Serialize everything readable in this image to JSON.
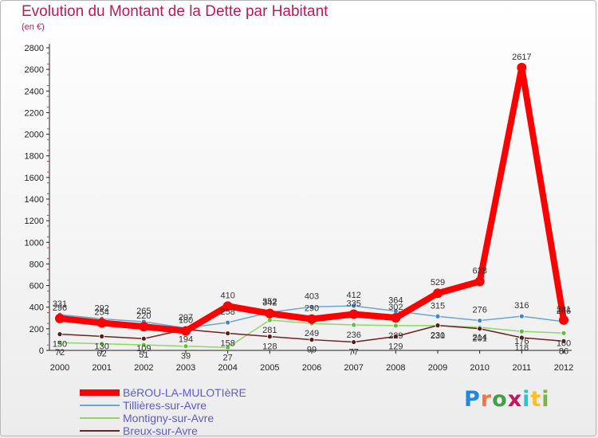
{
  "header": {
    "title": "Evolution du Montant de la Dette par Habitant",
    "subtitle": "(en €)"
  },
  "logo": {
    "letters": [
      "P",
      "r",
      "o",
      "x",
      "i",
      "t",
      "i"
    ],
    "colors": [
      "#1e88e5",
      "#ff7043",
      "#43a047",
      "#c2185b",
      "#26c6da",
      "#fbc02d",
      "#7cb342"
    ]
  },
  "chart_data": {
    "type": "line",
    "title": "Evolution du Montant de la Dette par Habitant",
    "ylabel": "(en €)",
    "ylim": [
      0,
      2800
    ],
    "yticks": [
      0,
      200,
      400,
      600,
      800,
      1000,
      1200,
      1400,
      1600,
      1800,
      2000,
      2200,
      2400,
      2600,
      2800
    ],
    "x": [
      "2000",
      "2001",
      "2002",
      "2003",
      "2004",
      "2005",
      "2006",
      "2007",
      "2008",
      "2009",
      "2010",
      "2011",
      "2012"
    ],
    "grid": false,
    "legend": "bottom-left",
    "series": [
      {
        "name": "Tillières-sur-Avre",
        "color": "#6aa6d6",
        "marker": "#3a86d0",
        "values": [
          331,
          292,
          265,
          207,
          258,
          352,
          403,
          412,
          364,
          315,
          276,
          316,
          266
        ]
      },
      {
        "name": "Montigny-sur-Avre",
        "color": "#8fd66a",
        "marker": "#5fc23a",
        "values": [
          72,
          62,
          51,
          39,
          27,
          281,
          249,
          236,
          229,
          230,
          214,
          176,
          160
        ]
      },
      {
        "name": "Breux-sur-Avre",
        "color": "#6e2323",
        "marker": "#5a1a1a",
        "values": [
          150,
          130,
          109,
          194,
          158,
          128,
          99,
          77,
          129,
          231,
          201,
          118,
          86
        ]
      },
      {
        "name": "BéROU-LA-MULOTIèRE",
        "color": "#ff0000",
        "marker": "#ff0000",
        "values": [
          296,
          254,
          220,
          180,
          410,
          342,
          290,
          335,
          302,
          529,
          638,
          2617,
          281
        ]
      }
    ],
    "data_labels": [
      [
        "331",
        "292",
        "265",
        "207",
        "258",
        "352",
        "403",
        "412",
        "364",
        "315",
        "276",
        "316",
        "266"
      ],
      [
        "72",
        "62",
        "51",
        "39",
        "27",
        "281",
        "249",
        "236",
        "229",
        "230",
        "214",
        "176",
        "160"
      ],
      [
        "150",
        "130",
        "109",
        "194",
        "158",
        "128",
        "99",
        "77",
        "129",
        "231",
        "201",
        "118",
        "86"
      ],
      [
        "296",
        "254",
        "220",
        "180",
        "410",
        "342",
        "290",
        "335",
        "302",
        "529",
        "638",
        "2617",
        "281"
      ]
    ]
  },
  "legend_labels": [
    "BéROU-LA-MULOTIèRE",
    "Tillières-sur-Avre",
    "Montigny-sur-Avre",
    "Breux-sur-Avre"
  ]
}
